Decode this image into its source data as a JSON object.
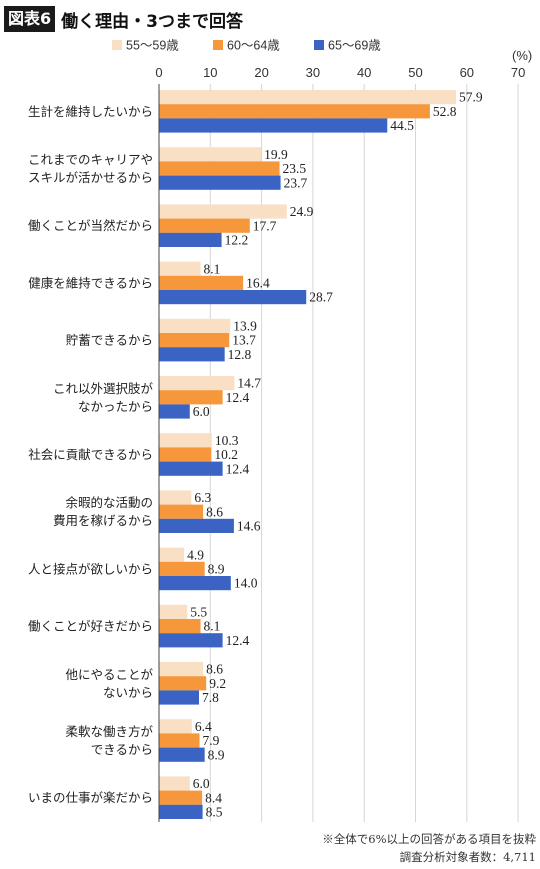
{
  "header": {
    "figure_label": "図表6",
    "title": "働く理由・3つまで回答"
  },
  "notes": [
    "※全体で6%以上の回答がある項目を抜粋",
    "調査分析対象者数：4,711"
  ],
  "chart_data": {
    "type": "bar",
    "orientation": "horizontal",
    "unit": "(%)",
    "xlim": [
      0,
      70
    ],
    "ticks": [
      "0",
      "10",
      "20",
      "30",
      "40",
      "50",
      "60",
      "70"
    ],
    "legend_position": "top",
    "grid": true,
    "categories": [
      [
        "生計を維持したいから"
      ],
      [
        "これまでのキャリアや",
        "スキルが活かせるから"
      ],
      [
        "働くことが当然だから"
      ],
      [
        "健康を維持できるから"
      ],
      [
        "貯蓄できるから"
      ],
      [
        "これ以外選択肢が",
        "なかったから"
      ],
      [
        "社会に貢献できるから"
      ],
      [
        "余暇的な活動の",
        "費用を稼げるから"
      ],
      [
        "人と接点が欲しいから"
      ],
      [
        "働くことが好きだから"
      ],
      [
        "他にやることが",
        "ないから"
      ],
      [
        "柔軟な働き方が",
        "できるから"
      ],
      [
        "いまの仕事が楽だから"
      ]
    ],
    "series": [
      {
        "name": "55〜59歳",
        "color": "#f9dfc4",
        "values": [
          57.9,
          19.9,
          24.9,
          8.1,
          13.9,
          14.7,
          10.3,
          6.3,
          4.9,
          5.5,
          8.6,
          6.4,
          6.0
        ]
      },
      {
        "name": "60〜64歳",
        "color": "#f5973a",
        "values": [
          52.8,
          23.5,
          17.7,
          16.4,
          13.7,
          12.4,
          10.2,
          8.6,
          8.9,
          8.1,
          9.2,
          7.9,
          8.4
        ]
      },
      {
        "name": "65〜69歳",
        "color": "#3a63c4",
        "values": [
          44.5,
          23.7,
          12.2,
          28.7,
          12.8,
          6.0,
          12.4,
          14.6,
          14.0,
          12.4,
          7.8,
          8.9,
          8.5
        ]
      }
    ]
  }
}
